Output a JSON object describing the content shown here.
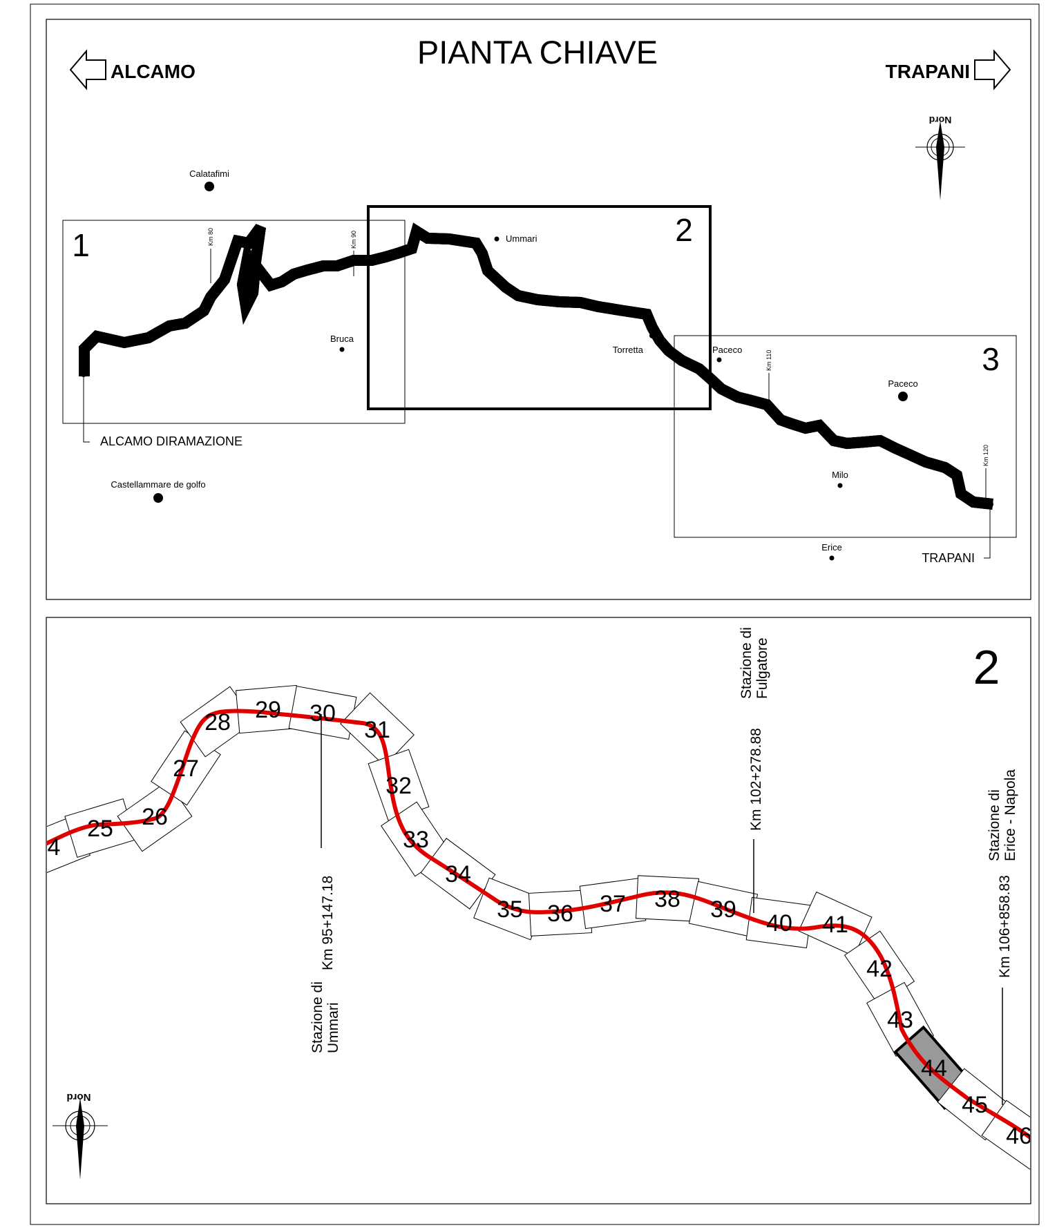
{
  "key_map": {
    "title": "PIANTA CHIAVE",
    "direction_left": "ALCAMO",
    "direction_right": "TRAPANI",
    "north_label": "Nord",
    "sheet_numbers": [
      "1",
      "2",
      "3"
    ],
    "places": {
      "calatafimi": "Calatafimi",
      "ummari": "Ummari",
      "bruca": "Bruca",
      "torretta": "Torretta",
      "paceco_small": "Paceco",
      "paceco_large": "Paceco",
      "milo": "Milo",
      "erice": "Erice",
      "castellammare": "Castellammare de golfo"
    },
    "endpoints": {
      "start": "ALCAMO DIRAMAZIONE",
      "end": "TRAPANI"
    },
    "km_markers": [
      "Km 80",
      "Km 90",
      "Km 110",
      "Km 120"
    ]
  },
  "detail_map": {
    "sheet_number": "2",
    "north_label": "Nord",
    "segments": [
      "4",
      "25",
      "26",
      "27",
      "28",
      "29",
      "30",
      "31",
      "32",
      "33",
      "34",
      "35",
      "36",
      "37",
      "38",
      "39",
      "40",
      "41",
      "42",
      "43",
      "44",
      "45",
      "46"
    ],
    "highlighted_segment": "44",
    "stations": {
      "ummari": {
        "km": "Km 95+147.18",
        "line1": "Stazione di",
        "line2": "Ummari"
      },
      "fulgatore": {
        "km": "Km 102+278.88",
        "line1": "Stazione di",
        "line2": "Fulgatore"
      },
      "erice": {
        "km": "Km 106+858.83",
        "line1": "Stazione di",
        "line2": "Erice - Napola"
      }
    }
  },
  "colors": {
    "route": "#e00000",
    "highlight_fill": "#999999",
    "line": "#000000"
  }
}
